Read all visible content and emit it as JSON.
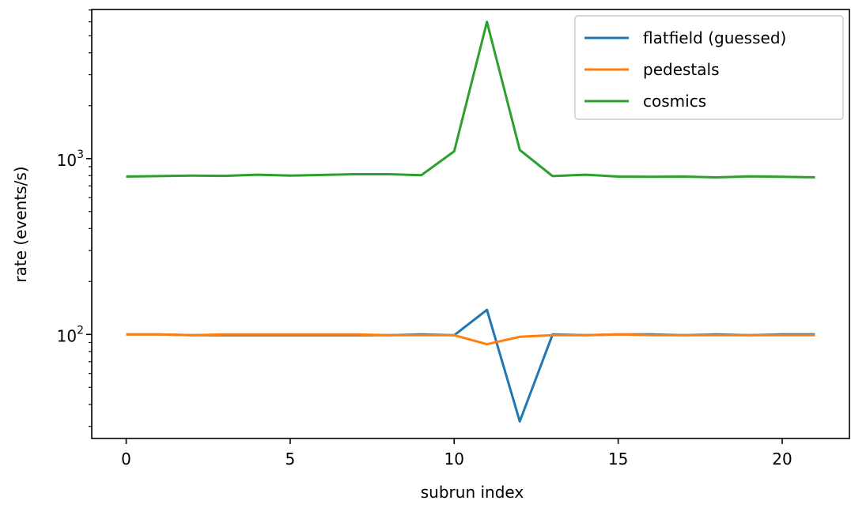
{
  "chart_data": {
    "type": "line",
    "xlabel": "subrun index",
    "ylabel": "rate (events/s)",
    "x": [
      0,
      1,
      2,
      3,
      4,
      5,
      6,
      7,
      8,
      9,
      10,
      11,
      12,
      13,
      14,
      15,
      16,
      17,
      18,
      19,
      20,
      21
    ],
    "xlim": [
      -1.05,
      22.05
    ],
    "ylim": [
      25.6,
      7050
    ],
    "yscale": "log",
    "xticks": [
      0,
      5,
      10,
      15,
      20
    ],
    "xtick_labels": [
      "0",
      "5",
      "10",
      "15",
      "20"
    ],
    "yticks_major": [
      100,
      1000
    ],
    "ytick_labels": [
      {
        "base": "10",
        "exp": "2"
      },
      {
        "base": "10",
        "exp": "3"
      }
    ],
    "grid": false,
    "legend_position": "top-right",
    "series": [
      {
        "name": "flatfield (guessed)",
        "color": "#1f77b4",
        "values": [
          100,
          100,
          99,
          99,
          99,
          99,
          99,
          99,
          99,
          100,
          99,
          138,
          32,
          100,
          99,
          100,
          100,
          99,
          100,
          99,
          100,
          100
        ]
      },
      {
        "name": "pedestals",
        "color": "#ff7f0e",
        "values": [
          100,
          100,
          99,
          100,
          100,
          100,
          100,
          100,
          99,
          99,
          99,
          88,
          97,
          99,
          99,
          100,
          99,
          99,
          99,
          99,
          99,
          99
        ]
      },
      {
        "name": "cosmics",
        "color": "#2ca02c",
        "values": [
          790,
          795,
          800,
          798,
          810,
          800,
          808,
          815,
          815,
          805,
          1100,
          6000,
          1120,
          795,
          810,
          790,
          788,
          790,
          782,
          793,
          788,
          783
        ]
      }
    ]
  }
}
